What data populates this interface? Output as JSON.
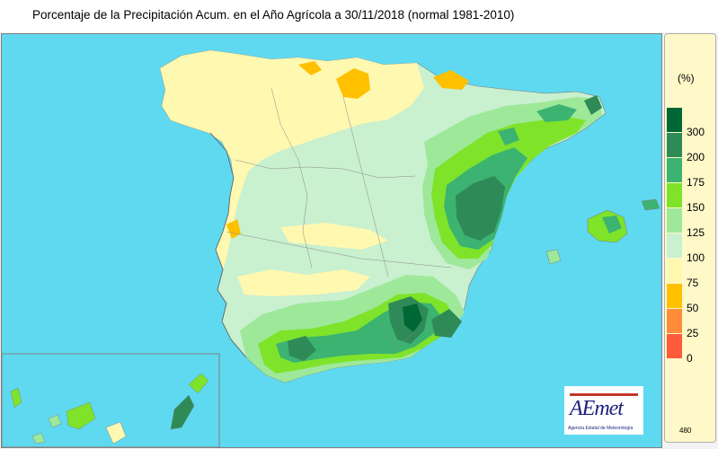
{
  "title": "Porcentaje de la Precipitación Acum. en el Año Agrícola a 30/11/2018  (normal 1981-2010)",
  "legend": {
    "unit": "(%)",
    "items": [
      {
        "label": "300",
        "color": "#006837"
      },
      {
        "label": "200",
        "color": "#2e8b57"
      },
      {
        "label": "175",
        "color": "#3cb371"
      },
      {
        "label": "150",
        "color": "#7fe32a"
      },
      {
        "label": "125",
        "color": "#9ee89a"
      },
      {
        "label": "100",
        "color": "#c9f0cf"
      },
      {
        "label": "75",
        "color": "#fff8b0"
      },
      {
        "label": "50",
        "color": "#ffc000"
      },
      {
        "label": "25",
        "color": "#ff8c3a"
      },
      {
        "label": "0",
        "color": "#ff5a3a"
      }
    ]
  },
  "map_number": "480",
  "logo": {
    "mark": "AEmet",
    "subtitle": "Agencia Estatal de Meteorología"
  },
  "colors": {
    "sea": "#5fd9f0",
    "land_base": "#c9f0cf",
    "legend_background": "#fff8c8"
  }
}
